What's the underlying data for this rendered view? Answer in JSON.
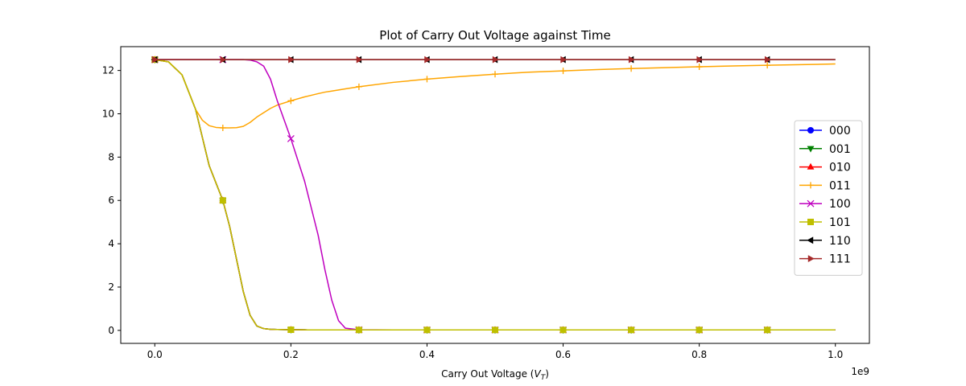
{
  "chart_data": {
    "type": "line",
    "title": "Plot of Carry Out Voltage against Time",
    "xlabel_main": "Carry Out Voltage (",
    "xlabel_var": "V",
    "xlabel_sub": "T",
    "xlabel_close": ")",
    "ylabel": "",
    "x_offset_text": "1e9",
    "xlim": [
      -0.05,
      1.05
    ],
    "ylim": [
      -0.6,
      13.1
    ],
    "x_ticks": [
      0.0,
      0.2,
      0.4,
      0.6,
      0.8,
      1.0
    ],
    "x_tick_labels": [
      "0.0",
      "0.2",
      "0.4",
      "0.6",
      "0.8",
      "1.0"
    ],
    "y_ticks": [
      0,
      2,
      4,
      6,
      8,
      10,
      12
    ],
    "y_tick_labels": [
      "0",
      "2",
      "4",
      "6",
      "8",
      "10",
      "12"
    ],
    "grid": false,
    "legend_position": "center-right",
    "x": [
      0.0,
      0.02,
      0.04,
      0.06,
      0.07,
      0.08,
      0.09,
      0.1,
      0.11,
      0.12,
      0.13,
      0.14,
      0.15,
      0.16,
      0.17,
      0.18,
      0.2,
      0.22,
      0.24,
      0.25,
      0.26,
      0.27,
      0.28,
      0.3,
      0.35,
      0.4,
      0.45,
      0.5,
      0.55,
      0.6,
      0.65,
      0.7,
      0.75,
      0.8,
      0.85,
      0.9,
      0.95,
      1.0
    ],
    "series": [
      {
        "name": "000",
        "color": "#0000ff",
        "marker": "circle",
        "values": [
          12.5,
          12.4,
          11.8,
          10.2,
          8.9,
          7.6,
          6.8,
          6.0,
          4.8,
          3.3,
          1.8,
          0.7,
          0.2,
          0.08,
          0.05,
          0.04,
          0.03,
          0.025,
          0.02,
          0.02,
          0.02,
          0.02,
          0.02,
          0.02,
          0.02,
          0.02,
          0.02,
          0.02,
          0.02,
          0.02,
          0.02,
          0.02,
          0.02,
          0.02,
          0.02,
          0.02,
          0.02,
          0.02
        ]
      },
      {
        "name": "001",
        "color": "#008000",
        "marker": "triangle-down",
        "values": [
          12.5,
          12.4,
          11.8,
          10.2,
          8.9,
          7.6,
          6.8,
          6.0,
          4.8,
          3.3,
          1.8,
          0.7,
          0.2,
          0.08,
          0.05,
          0.04,
          0.03,
          0.025,
          0.02,
          0.02,
          0.02,
          0.02,
          0.02,
          0.02,
          0.02,
          0.02,
          0.02,
          0.02,
          0.02,
          0.02,
          0.02,
          0.02,
          0.02,
          0.02,
          0.02,
          0.02,
          0.02,
          0.02
        ]
      },
      {
        "name": "010",
        "color": "#ff0000",
        "marker": "triangle-up",
        "values": [
          12.5,
          12.4,
          11.8,
          10.2,
          8.9,
          7.6,
          6.8,
          6.0,
          4.8,
          3.3,
          1.8,
          0.7,
          0.2,
          0.08,
          0.05,
          0.04,
          0.03,
          0.025,
          0.02,
          0.02,
          0.02,
          0.02,
          0.02,
          0.02,
          0.02,
          0.02,
          0.02,
          0.02,
          0.02,
          0.02,
          0.02,
          0.02,
          0.02,
          0.02,
          0.02,
          0.02,
          0.02,
          0.02
        ]
      },
      {
        "name": "011",
        "color": "#ffa500",
        "marker": "plus",
        "values": [
          12.5,
          12.4,
          11.8,
          10.2,
          9.7,
          9.45,
          9.37,
          9.35,
          9.35,
          9.36,
          9.42,
          9.6,
          9.85,
          10.05,
          10.25,
          10.4,
          10.6,
          10.78,
          10.93,
          11.0,
          11.05,
          11.1,
          11.15,
          11.25,
          11.45,
          11.6,
          11.72,
          11.83,
          11.92,
          11.98,
          12.04,
          12.09,
          12.13,
          12.17,
          12.21,
          12.24,
          12.27,
          12.3
        ]
      },
      {
        "name": "100",
        "color": "#bf00bf",
        "marker": "x",
        "values": [
          12.5,
          12.5,
          12.5,
          12.5,
          12.5,
          12.5,
          12.5,
          12.5,
          12.5,
          12.5,
          12.5,
          12.48,
          12.4,
          12.2,
          11.6,
          10.6,
          8.85,
          6.9,
          4.4,
          2.8,
          1.4,
          0.45,
          0.1,
          0.03,
          0.02,
          0.02,
          0.02,
          0.02,
          0.02,
          0.02,
          0.02,
          0.02,
          0.02,
          0.02,
          0.02,
          0.02,
          0.02,
          0.02
        ]
      },
      {
        "name": "101",
        "color": "#bfbf00",
        "marker": "square",
        "values": [
          12.5,
          12.4,
          11.8,
          10.2,
          8.9,
          7.6,
          6.8,
          6.0,
          4.8,
          3.3,
          1.8,
          0.7,
          0.2,
          0.08,
          0.05,
          0.04,
          0.03,
          0.025,
          0.02,
          0.02,
          0.02,
          0.02,
          0.02,
          0.02,
          0.02,
          0.02,
          0.02,
          0.02,
          0.02,
          0.02,
          0.02,
          0.02,
          0.02,
          0.02,
          0.02,
          0.02,
          0.02,
          0.02
        ]
      },
      {
        "name": "110",
        "color": "#000000",
        "marker": "triangle-left",
        "values": [
          12.5,
          12.5,
          12.5,
          12.5,
          12.5,
          12.5,
          12.5,
          12.5,
          12.5,
          12.5,
          12.5,
          12.5,
          12.5,
          12.5,
          12.5,
          12.5,
          12.5,
          12.5,
          12.5,
          12.5,
          12.5,
          12.5,
          12.5,
          12.5,
          12.5,
          12.5,
          12.5,
          12.5,
          12.5,
          12.5,
          12.5,
          12.5,
          12.5,
          12.5,
          12.5,
          12.5,
          12.5,
          12.5
        ]
      },
      {
        "name": "111",
        "color": "#a52a2a",
        "marker": "triangle-right",
        "values": [
          12.5,
          12.5,
          12.5,
          12.5,
          12.5,
          12.5,
          12.5,
          12.5,
          12.5,
          12.5,
          12.5,
          12.5,
          12.5,
          12.5,
          12.5,
          12.5,
          12.5,
          12.5,
          12.5,
          12.5,
          12.5,
          12.5,
          12.5,
          12.5,
          12.5,
          12.5,
          12.5,
          12.5,
          12.5,
          12.5,
          12.5,
          12.5,
          12.5,
          12.5,
          12.5,
          12.5,
          12.5,
          12.5
        ]
      }
    ],
    "marker_x": [
      0.0,
      0.1,
      0.2,
      0.3,
      0.4,
      0.5,
      0.6,
      0.7,
      0.8,
      0.9
    ],
    "marker_values": {
      "000": [
        12.5,
        6.0,
        0.03,
        0.02,
        0.02,
        0.02,
        0.02,
        0.02,
        0.02,
        0.02
      ],
      "001": [
        12.5,
        6.0,
        0.03,
        0.02,
        0.02,
        0.02,
        0.02,
        0.02,
        0.02,
        0.02
      ],
      "010": [
        12.5,
        6.0,
        0.03,
        0.02,
        0.02,
        0.02,
        0.02,
        0.02,
        0.02,
        0.02
      ],
      "011": [
        12.5,
        9.35,
        10.6,
        11.25,
        11.6,
        11.83,
        11.98,
        12.09,
        12.17,
        12.24
      ],
      "100": [
        12.5,
        12.5,
        8.85,
        0.03,
        0.02,
        0.02,
        0.02,
        0.02,
        0.02,
        0.02
      ],
      "101": [
        12.5,
        6.0,
        0.03,
        0.02,
        0.02,
        0.02,
        0.02,
        0.02,
        0.02,
        0.02
      ],
      "110": [
        12.5,
        12.5,
        12.5,
        12.5,
        12.5,
        12.5,
        12.5,
        12.5,
        12.5,
        12.5
      ],
      "111": [
        12.5,
        12.5,
        12.5,
        12.5,
        12.5,
        12.5,
        12.5,
        12.5,
        12.5,
        12.5
      ]
    }
  }
}
